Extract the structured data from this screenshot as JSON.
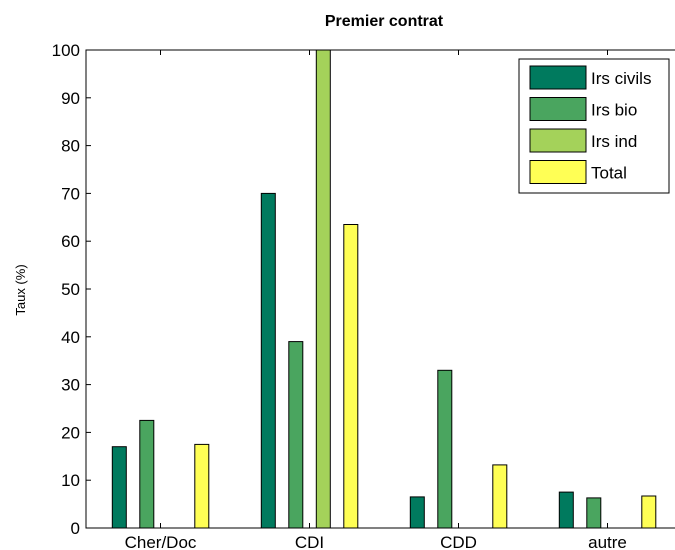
{
  "chart_data": {
    "type": "bar",
    "title": "Premier contrat",
    "xlabel": "",
    "ylabel": "Taux (%)",
    "ylim": [
      0,
      100
    ],
    "yticks": [
      0,
      10,
      20,
      30,
      40,
      50,
      60,
      70,
      80,
      90,
      100
    ],
    "categories": [
      "Cher/Doc",
      "CDI",
      "CDD",
      "autre"
    ],
    "series": [
      {
        "name": "Irs civils",
        "color": "#007a5e",
        "values": [
          17,
          70,
          6.5,
          7.5
        ]
      },
      {
        "name": "Irs bio",
        "color": "#4aa55f",
        "values": [
          22.5,
          39,
          33,
          6.3
        ]
      },
      {
        "name": "Irs ind",
        "color": "#a4d25a",
        "values": [
          0,
          100,
          0,
          0
        ]
      },
      {
        "name": "Total",
        "color": "#ffff55",
        "values": [
          17.5,
          63.5,
          13.2,
          6.7
        ]
      }
    ],
    "legend": "top-right",
    "grid": false
  }
}
